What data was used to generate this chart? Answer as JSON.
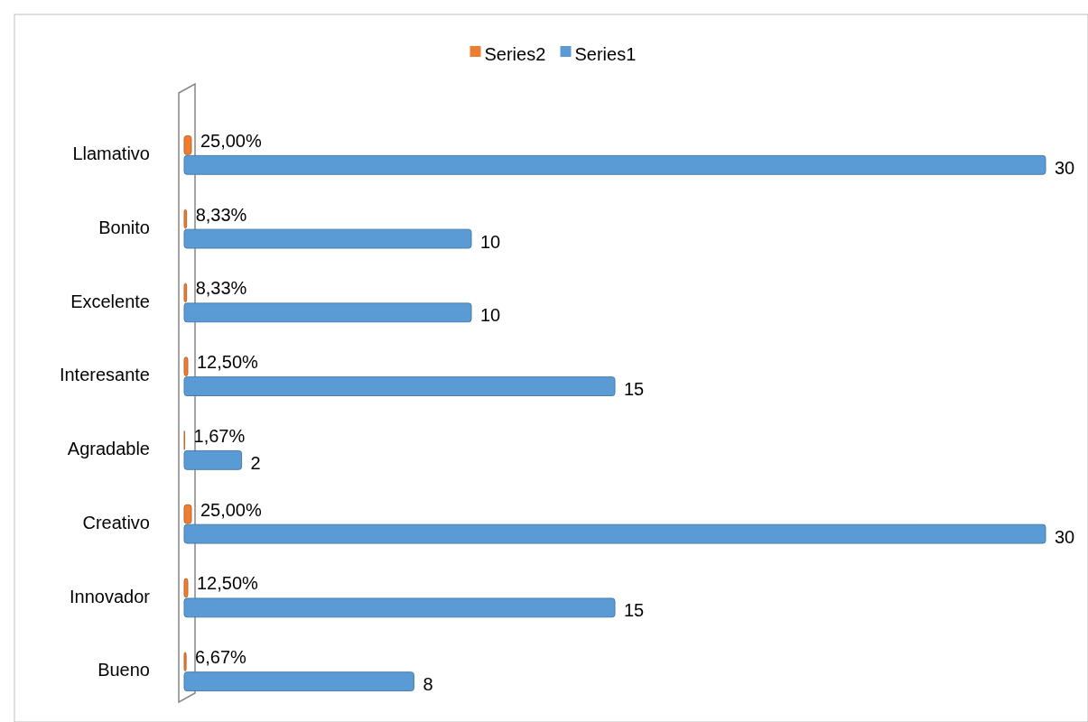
{
  "chart_data": {
    "type": "bar",
    "orientation": "horizontal",
    "legend": "top",
    "categories": [
      "Llamativo",
      "Bonito",
      "Excelente",
      "Interesante",
      "Agradable",
      "Creativo",
      "Innovador",
      "Bueno"
    ],
    "series": [
      {
        "name": "Series2",
        "color": "#ed7d31",
        "values": [
          0.25,
          0.0833,
          0.0833,
          0.125,
          0.0167,
          0.25,
          0.125,
          0.0667
        ],
        "value_labels": [
          "25,00%",
          "8,33%",
          "8,33%",
          "12,50%",
          "1,67%",
          "25,00%",
          "12,50%",
          "6,67%"
        ]
      },
      {
        "name": "Series1",
        "color": "#5b9bd5",
        "values": [
          30,
          10,
          10,
          15,
          2,
          30,
          15,
          8
        ],
        "value_labels": [
          "30",
          "10",
          "10",
          "15",
          "2",
          "30",
          "15",
          "8"
        ]
      }
    ]
  }
}
